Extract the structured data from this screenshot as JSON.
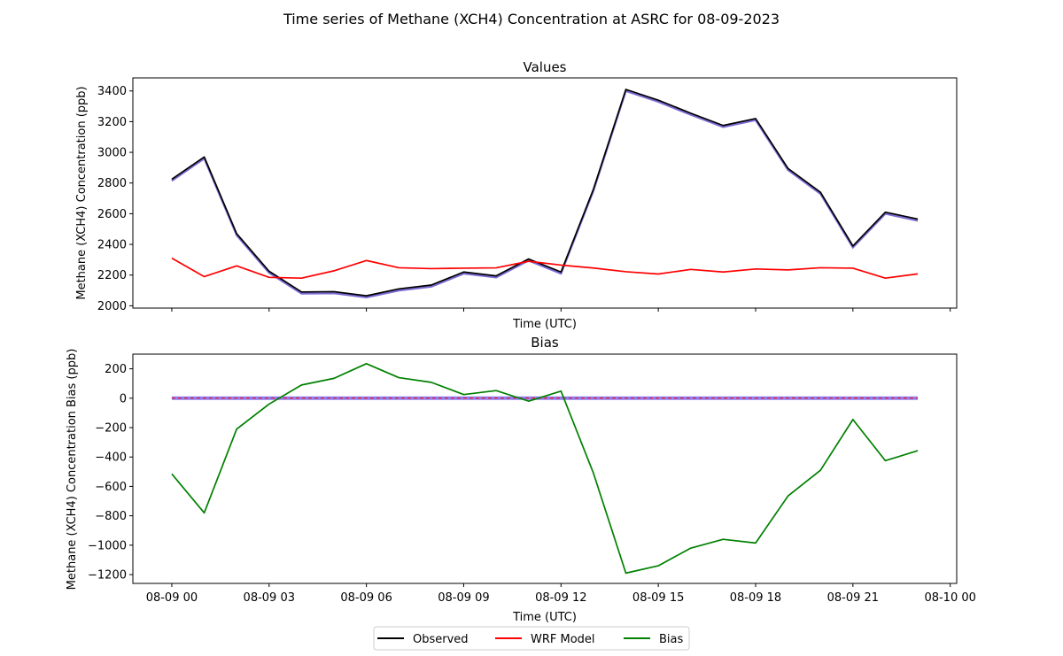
{
  "suptitle": "Time series of Methane (XCH4) Concentration at ASRC for 08-09-2023",
  "legend": {
    "entries": [
      {
        "label": "Observed",
        "color": "#000000"
      },
      {
        "label": "WRF Model",
        "color": "#ff0000"
      },
      {
        "label": "Bias",
        "color": "#008000"
      }
    ],
    "placement": "bottom-center"
  },
  "chart_data": [
    {
      "type": "line",
      "title": "Values",
      "xlabel": "Time (UTC)",
      "ylabel": "Methane (XCH4) Concentration (ppb)",
      "xlim": [
        -1.2,
        24.2
      ],
      "ylim": [
        1985,
        3485
      ],
      "yticks": [
        2000,
        2200,
        2400,
        2600,
        2800,
        3000,
        3200,
        3400
      ],
      "x_tick_labels_shown": false,
      "x": [
        0,
        1,
        2,
        3,
        4,
        5,
        6,
        7,
        8,
        9,
        10,
        11,
        12,
        13,
        14,
        15,
        16,
        17,
        18,
        19,
        20,
        21,
        22,
        23
      ],
      "series": [
        {
          "name": "Observed",
          "color": "#000000",
          "values": [
            2825,
            2970,
            2470,
            2225,
            2090,
            2092,
            2065,
            2110,
            2135,
            2220,
            2195,
            2305,
            2220,
            2760,
            3410,
            3340,
            3255,
            3175,
            3220,
            2895,
            2740,
            2390,
            2610,
            2565
          ]
        },
        {
          "name": "WRF Model",
          "color": "#ff0000",
          "values": [
            2310,
            2190,
            2260,
            2185,
            2180,
            2228,
            2295,
            2248,
            2242,
            2245,
            2247,
            2290,
            2265,
            2246,
            2222,
            2207,
            2237,
            2220,
            2240,
            2234,
            2248,
            2245,
            2180,
            2208
          ]
        }
      ]
    },
    {
      "type": "line",
      "title": "Bias",
      "xlabel": "Time (UTC)",
      "ylabel": "Methane (XCH4) Concentration Bias (ppb)",
      "xlim": [
        -1.2,
        24.2
      ],
      "ylim": [
        -1260,
        300
      ],
      "yticks": [
        -1200,
        -1000,
        -800,
        -600,
        -400,
        -200,
        0,
        200
      ],
      "xticks": [
        0,
        3,
        6,
        9,
        12,
        15,
        18,
        21,
        24
      ],
      "xtick_labels": [
        "08-09 00",
        "08-09 03",
        "08-09 06",
        "08-09 09",
        "08-09 12",
        "08-09 15",
        "08-09 18",
        "08-09 21",
        "08-10 00"
      ],
      "x": [
        0,
        1,
        2,
        3,
        4,
        5,
        6,
        7,
        8,
        9,
        10,
        11,
        12,
        13,
        14,
        15,
        16,
        17,
        18,
        19,
        20,
        21,
        22,
        23
      ],
      "reference_line": {
        "value": 0,
        "color": "#7b68ee",
        "style": "solid band with dashed red center",
        "x_range": [
          0,
          23
        ]
      },
      "series": [
        {
          "name": "Bias",
          "color": "#008000",
          "values": [
            -515,
            -780,
            -210,
            -40,
            90,
            135,
            235,
            140,
            108,
            25,
            52,
            -20,
            48,
            -510,
            -1190,
            -1140,
            -1020,
            -960,
            -985,
            -665,
            -490,
            -145,
            -425,
            -357
          ]
        }
      ]
    }
  ]
}
